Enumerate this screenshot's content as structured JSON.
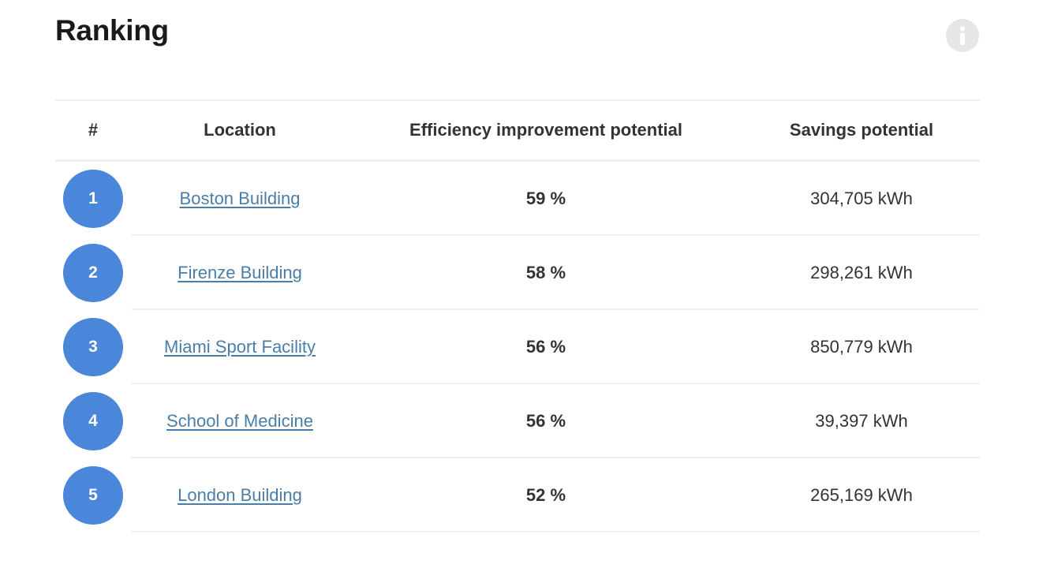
{
  "title": "Ranking",
  "table": {
    "headers": {
      "rank": "#",
      "location": "Location",
      "efficiency": "Efficiency improvement potential",
      "savings": "Savings potential"
    },
    "rows": [
      {
        "rank": "1",
        "location": "Boston Building",
        "efficiency": "59 %",
        "savings": "304,705 kWh"
      },
      {
        "rank": "2",
        "location": "Firenze Building",
        "efficiency": "58 %",
        "savings": "298,261 kWh"
      },
      {
        "rank": "3",
        "location": "Miami Sport Facility",
        "efficiency": "56 %",
        "savings": "850,779 kWh"
      },
      {
        "rank": "4",
        "location": "School of Medicine",
        "efficiency": "56 %",
        "savings": "39,397 kWh"
      },
      {
        "rank": "5",
        "location": "London Building",
        "efficiency": "52 %",
        "savings": "265,169 kWh"
      }
    ]
  },
  "icons": {
    "info": "info-icon"
  },
  "colors": {
    "badge": "#4a86d9",
    "link": "#4a7ea8",
    "info_icon_bg": "#e6e6e6"
  }
}
